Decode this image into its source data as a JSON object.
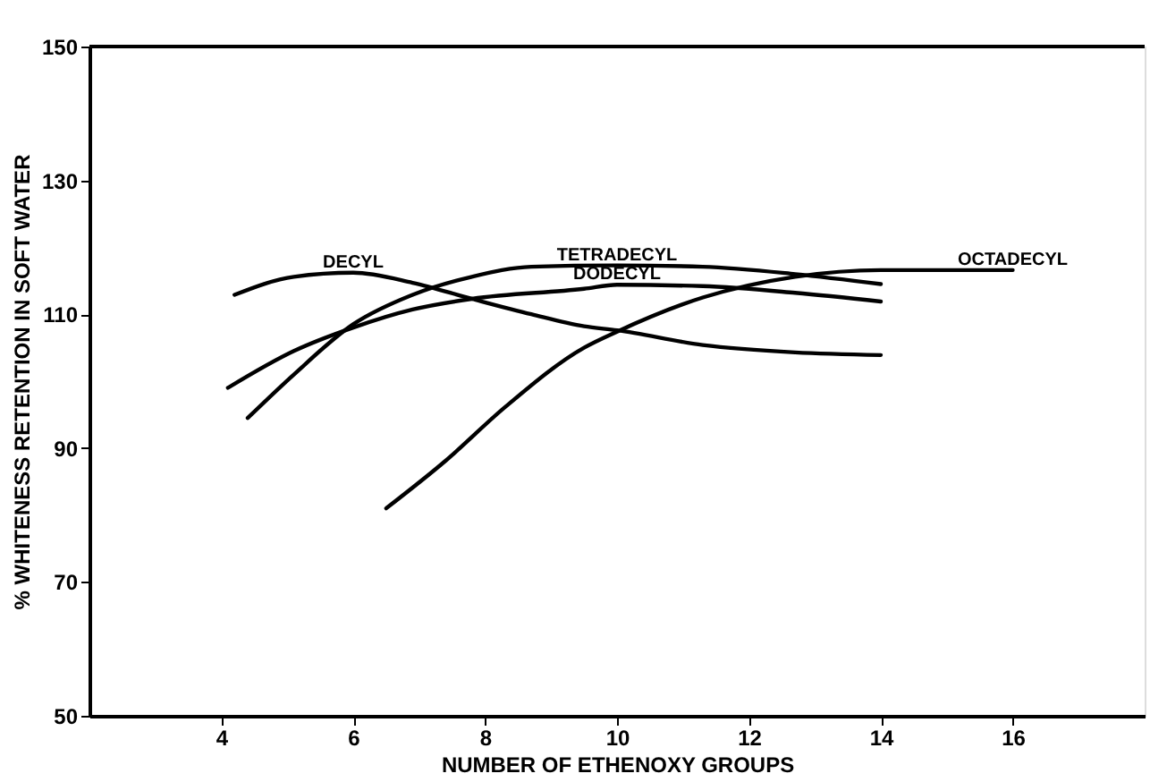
{
  "chart_data": {
    "type": "line",
    "xlabel": "NUMBER OF ETHENOXY GROUPS",
    "ylabel": "% WHITENESS RETENTION IN SOFT WATER",
    "xlim": [
      2,
      18
    ],
    "xticks": [
      4,
      6,
      8,
      10,
      12,
      14,
      16
    ],
    "ylim": [
      50,
      150
    ],
    "yticks": [
      50,
      70,
      90,
      110,
      130,
      150
    ],
    "grid": false,
    "legend": false,
    "marker": "none",
    "line_style": "solid",
    "series": [
      {
        "name": "DECYL",
        "color": "#000000",
        "x": [
          4.2,
          5.1,
          6,
          6.9,
          7.8,
          8.7,
          9.5,
          10,
          11.3,
          12.7,
          14
        ],
        "values": [
          112.9,
          115.6,
          116.2,
          114.7,
          112.3,
          110,
          108.2,
          107.6,
          105.4,
          104.3,
          103.9
        ]
      },
      {
        "name": "TETRADECYL",
        "color": "#000000",
        "x": [
          4.4,
          5.1,
          6,
          6.9,
          7.8,
          8.7,
          10,
          11.3,
          12.7,
          14
        ],
        "values": [
          94.5,
          101,
          108.5,
          112.9,
          115.6,
          117.1,
          117.3,
          117.1,
          116,
          114.5
        ]
      },
      {
        "name": "DODECYL",
        "color": "#000000",
        "x": [
          4.1,
          5.1,
          6,
          6.9,
          7.8,
          9.5,
          10,
          11.3,
          12.7,
          14
        ],
        "values": [
          99,
          104.5,
          108,
          110.7,
          112.3,
          113.8,
          114.4,
          114.2,
          113.2,
          111.9
        ]
      },
      {
        "name": "OCTADECYL",
        "color": "#000000",
        "x": [
          6.5,
          7.4,
          8.3,
          9.5,
          10,
          11.3,
          12.7,
          14,
          16
        ],
        "values": [
          81,
          88.1,
          96.1,
          105,
          107.4,
          112.5,
          115.6,
          116.6,
          116.6
        ]
      }
    ]
  }
}
